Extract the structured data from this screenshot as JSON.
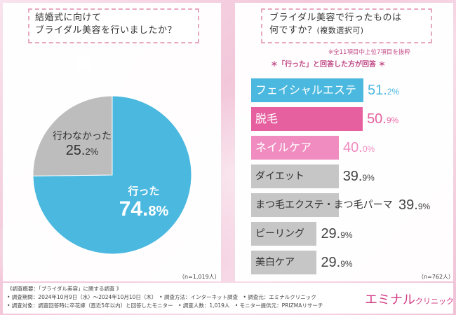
{
  "left_chart": {
    "title_lines": [
      "結婚式に向けて",
      "ブライダル美容を行いましたか？"
    ],
    "n_label": "（n=1,019人）",
    "slice_yes_label": "行った",
    "slice_yes_pct_int": "74.",
    "slice_yes_pct_dec": "8%",
    "slice_no_label": "行わなかった",
    "slice_no_pct_int": "25.",
    "slice_no_pct_dec": "2%"
  },
  "right_chart": {
    "title_lines": [
      "ブライダル美容で行ったものは",
      "何ですか？"
    ],
    "title_suffix": "(複数選択可)",
    "note": "※全11項目中上位7項目を抜粋",
    "note2": "＊「行った」と回答した方が回答 ＊",
    "n_label": "（n=762人）"
  },
  "bar_items": [
    {
      "label": "フェイシャルエステ",
      "int": "51.",
      "dec": "2%"
    },
    {
      "label": "脱毛",
      "int": "50.",
      "dec": "9%"
    },
    {
      "label": "ネイルケア",
      "int": "40.",
      "dec": "0%"
    },
    {
      "label": "ダイエット",
      "int": "39.",
      "dec": "9%"
    },
    {
      "label": "まつ毛エクステ・まつ毛パーマ",
      "int": "39.",
      "dec": "9%"
    },
    {
      "label": "ピーリング",
      "int": "29.",
      "dec": "9%"
    },
    {
      "label": "美白ケア",
      "int": "29.",
      "dec": "9%"
    }
  ],
  "chart_data": [
    {
      "type": "pie",
      "title": "結婚式に向けてブライダル美容を行いましたか？",
      "categories": [
        "行った",
        "行わなかった"
      ],
      "values": [
        74.8,
        25.2
      ],
      "unit": "%",
      "colors": [
        "#4bb8df",
        "#bdbdbd"
      ],
      "n": "n=1,019人"
    },
    {
      "type": "bar",
      "orientation": "horizontal",
      "title": "ブライダル美容で行ったものは何ですか？(複数選択可)",
      "categories": [
        "フェイシャルエステ",
        "脱毛",
        "ネイルケア",
        "ダイエット",
        "まつ毛エクステ・まつ毛パーマ",
        "ピーリング",
        "美白ケア"
      ],
      "values": [
        51.2,
        50.9,
        40.0,
        39.9,
        39.9,
        29.9,
        29.9
      ],
      "unit": "%",
      "colors": [
        "#4bb8df",
        "#e6609f",
        "#f08cc0",
        "#c6c6c6",
        "#c6c6c6",
        "#c6c6c6",
        "#c6c6c6"
      ],
      "n": "n=762人"
    }
  ],
  "footer": {
    "line1": "《調査概要：「ブライダル美容」に関する調査 》",
    "line2": "• 調査期間：2024年10月9日（水）～2024年10月10日（木）　• 調査方法：インターネット調査　• 調査元：エミナルクリニック",
    "line3": "• 調査対象：調査回答時に卒花嫁（直近5年以内）と回答したモニター　• 調査人数：1,019人　• モニター提供元：PRIZMAリサーチ"
  },
  "logo": {
    "main": "エミナル",
    "sub": "クリニック"
  }
}
